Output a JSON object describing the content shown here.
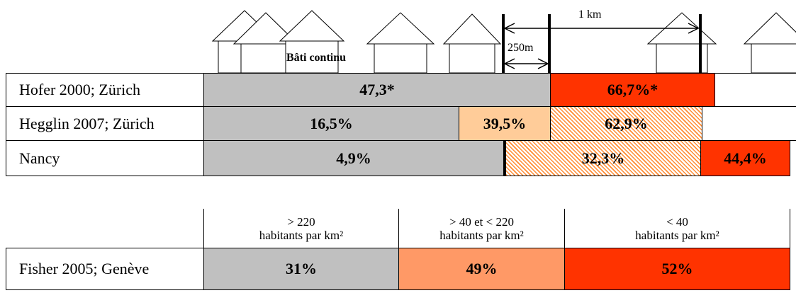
{
  "annotations": {
    "built": "Bâti continu",
    "d250": "250m",
    "d1km": "1 km"
  },
  "rows": [
    {
      "label": "Hofer 2000; Zürich",
      "cells": [
        "47,3*",
        "66,7%*"
      ]
    },
    {
      "label": "Hegglin 2007; Zürich",
      "cells": [
        "16,5%",
        "39,5%",
        "62,9%"
      ]
    },
    {
      "label": "Nancy",
      "cells": [
        "4,9%",
        "32,3%",
        "44,4%"
      ]
    }
  ],
  "density_header": [
    {
      "range": "> 220",
      "unit": "habitants par km²"
    },
    {
      "range": "> 40 et < 220",
      "unit": "habitants par km²"
    },
    {
      "range": "< 40",
      "unit": "habitants par km²"
    }
  ],
  "fisher": {
    "label": "Fisher 2005; Genève",
    "cells": [
      "31%",
      "49%",
      "52%"
    ]
  }
}
